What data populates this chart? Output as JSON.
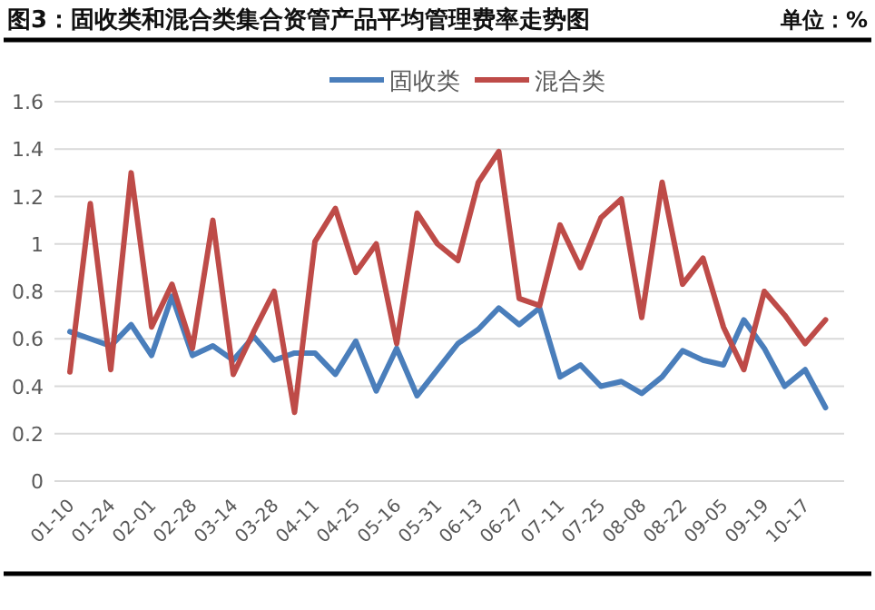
{
  "chart_data": {
    "type": "line",
    "title": "图3：固收类和混合类集合资管产品平均管理费率走势图",
    "ylabel": "单位：%",
    "categories": [
      "01-10",
      null,
      "01-24",
      null,
      "02-01",
      null,
      "02-28",
      null,
      "03-14",
      null,
      "03-28",
      null,
      "04-11",
      null,
      "04-25",
      null,
      "05-16",
      null,
      "05-31",
      null,
      "06-13",
      null,
      "06-27",
      null,
      "07-11",
      null,
      "07-25",
      null,
      "08-08",
      null,
      "08-22",
      null,
      "09-05",
      null,
      "09-19",
      null,
      "10-17",
      null
    ],
    "series": [
      {
        "name": "固收类",
        "color": "#4a7ebb",
        "values": [
          0.63,
          0.6,
          0.57,
          0.66,
          0.53,
          0.78,
          0.53,
          0.57,
          0.51,
          0.61,
          0.51,
          0.54,
          0.54,
          0.45,
          0.59,
          0.38,
          0.56,
          0.36,
          0.47,
          0.58,
          0.64,
          0.73,
          0.66,
          0.73,
          0.44,
          0.49,
          0.4,
          0.42,
          0.37,
          0.44,
          0.55,
          0.51,
          0.49,
          0.68,
          0.56,
          0.4,
          0.47,
          0.31
        ]
      },
      {
        "name": "混合类",
        "color": "#be4b48",
        "values": [
          0.46,
          1.17,
          0.47,
          1.3,
          0.65,
          0.83,
          0.56,
          1.1,
          0.45,
          0.63,
          0.8,
          0.29,
          1.01,
          1.15,
          0.88,
          1.0,
          0.58,
          1.13,
          1.0,
          0.93,
          1.26,
          1.39,
          0.77,
          0.74,
          1.08,
          0.9,
          1.11,
          1.19,
          0.69,
          1.26,
          0.83,
          0.94,
          0.65,
          0.47,
          0.8,
          0.7,
          0.58,
          0.68
        ]
      }
    ],
    "ylim": [
      0,
      1.6
    ],
    "yticks": [
      0,
      0.2,
      0.4,
      0.6,
      0.8,
      1,
      1.2,
      1.4,
      1.6
    ],
    "grid": "y",
    "legend": "top",
    "marker": "none",
    "line_style": "solid"
  }
}
